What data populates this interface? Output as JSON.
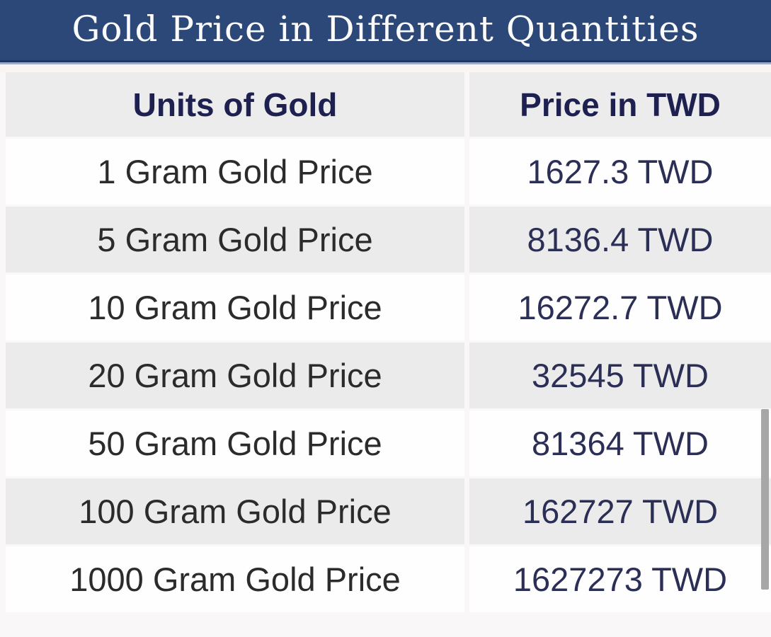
{
  "title": "Gold Price in Different Quantities",
  "table": {
    "columns": [
      "Units of Gold",
      "Price in TWD"
    ],
    "rows": [
      {
        "unit": "1 Gram Gold Price",
        "price": "1627.3 TWD"
      },
      {
        "unit": "5 Gram Gold Price",
        "price": "8136.4 TWD"
      },
      {
        "unit": "10 Gram Gold Price",
        "price": "16272.7 TWD"
      },
      {
        "unit": "20 Gram Gold Price",
        "price": "32545 TWD"
      },
      {
        "unit": "50 Gram Gold Price",
        "price": "81364 TWD"
      },
      {
        "unit": "100 Gram Gold Price",
        "price": "162727 TWD"
      },
      {
        "unit": "1000 Gram Gold Price",
        "price": "1627273 TWD"
      }
    ]
  },
  "colors": {
    "title_bar_bg": "#2b4879",
    "title_bar_border": "#1c3765",
    "title_text": "#fbfbfb",
    "row_gray": "#ebebeb",
    "row_white": "#fefefe",
    "column_header_text": "#1e2150",
    "unit_text": "#2b2b2b",
    "price_text": "#2b2e55",
    "scrollbar_thumb": "#a7a7a7"
  }
}
